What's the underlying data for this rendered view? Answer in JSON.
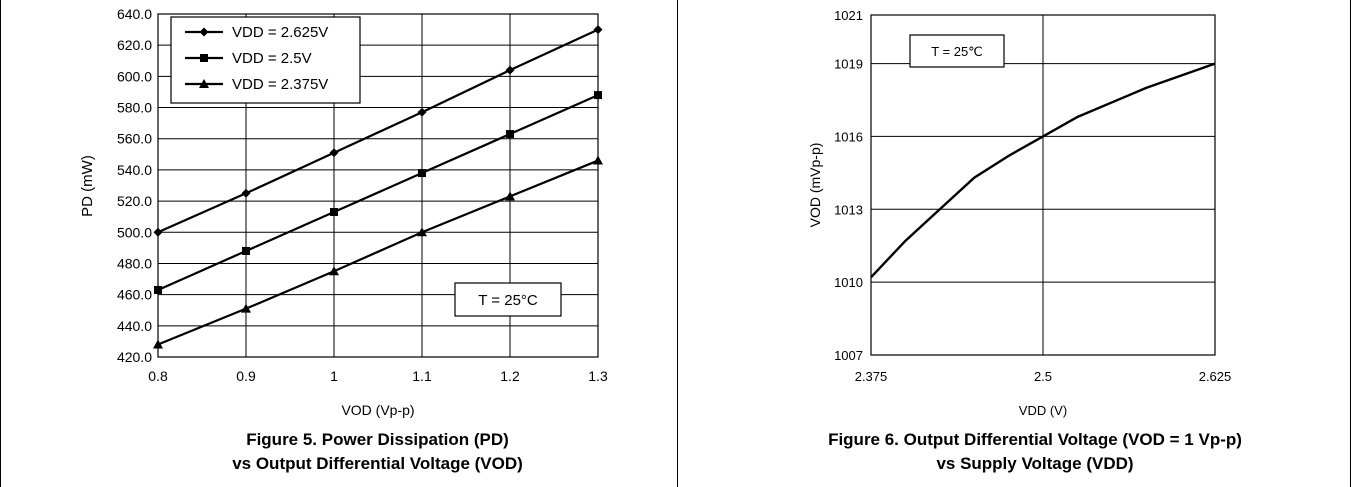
{
  "chart_data": [
    {
      "type": "line",
      "caption": [
        "Figure 5. Power Dissipation (PD)",
        "vs Output Differential Voltage (VOD)"
      ],
      "xlabel": "VOD (Vp-p)",
      "ylabel": "PD (mW)",
      "xlim": [
        0.8,
        1.3
      ],
      "ylim": [
        420,
        640
      ],
      "x_ticks": [
        "0.8",
        "0.9",
        "1",
        "1.1",
        "1.2",
        "1.3"
      ],
      "y_ticks": [
        "420.0",
        "440.0",
        "460.0",
        "480.0",
        "500.0",
        "520.0",
        "540.0",
        "560.0",
        "580.0",
        "600.0",
        "620.0",
        "640.0"
      ],
      "grid": true,
      "legend_position": "top-left",
      "annotation": "T = 25°C",
      "x": [
        0.8,
        0.9,
        1.0,
        1.1,
        1.2,
        1.3
      ],
      "series": [
        {
          "name": "VDD = 2.625V",
          "marker": "diamond",
          "values": [
            500,
            525,
            551,
            577,
            604,
            630
          ]
        },
        {
          "name": "VDD = 2.5V",
          "marker": "square",
          "values": [
            463,
            488,
            513,
            538,
            563,
            588
          ]
        },
        {
          "name": "VDD = 2.375V",
          "marker": "triangle",
          "values": [
            428,
            451,
            475,
            500,
            523,
            546
          ]
        }
      ]
    },
    {
      "type": "line",
      "caption": [
        "Figure 6. Output Differential Voltage (VOD = 1 Vp-p)",
        "vs Supply Voltage (VDD)"
      ],
      "xlabel": "VDD (V)",
      "ylabel": "VOD (mVp-p)",
      "xlim": [
        2.375,
        2.625
      ],
      "ylim": [
        1007,
        1021
      ],
      "x_ticks": [
        "2.375",
        "2.5",
        "2.625"
      ],
      "y_ticks": [
        "1007",
        "1010",
        "1013",
        "1016",
        "1019",
        "1021"
      ],
      "grid": true,
      "annotation": "T = 25℃",
      "series": [
        {
          "x": [
            2.375,
            2.4,
            2.425,
            2.45,
            2.475,
            2.5,
            2.525,
            2.55,
            2.575,
            2.6,
            2.625
          ],
          "values": [
            1010.2,
            1011.7,
            1013.0,
            1014.3,
            1015.2,
            1016.0,
            1016.8,
            1017.4,
            1018.0,
            1018.5,
            1019.0
          ]
        }
      ]
    }
  ]
}
